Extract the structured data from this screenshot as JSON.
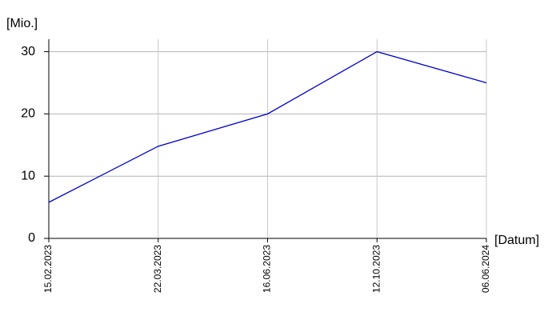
{
  "chart_data": {
    "type": "line",
    "y_axis_label": "[Mio.]",
    "x_axis_label": "[Datum]",
    "categories": [
      "15.02.2023",
      "22.03.2023",
      "16.06.2023",
      "12.10.2023",
      "06.06.2024"
    ],
    "series": [
      {
        "color": "#0000cc",
        "values": [
          5.8,
          14.8,
          20,
          30,
          25
        ]
      }
    ],
    "ylim": [
      0,
      32
    ],
    "yticks": [
      0,
      10,
      20,
      30
    ],
    "grid": true
  }
}
